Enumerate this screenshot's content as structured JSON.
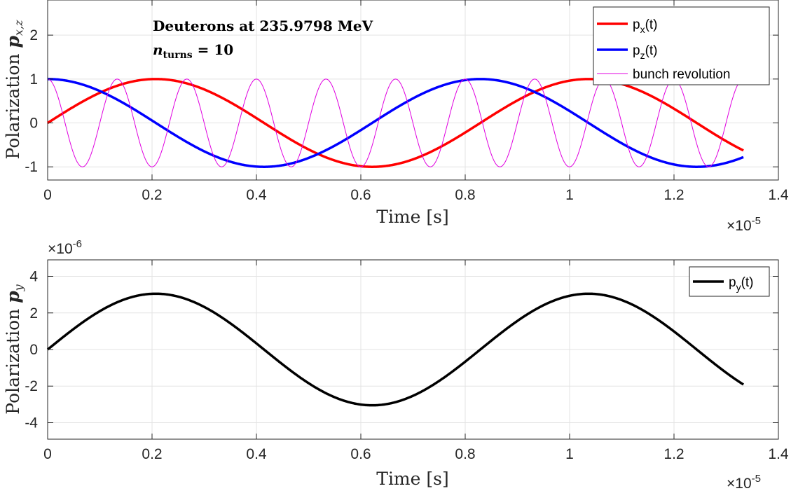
{
  "chart_data": [
    {
      "type": "line",
      "id": "top",
      "xlabel": "Time [s]",
      "ylabel": "Polarization",
      "ylabel_sub": "x,z",
      "xlim": [
        0,
        1.4
      ],
      "ylim": [
        -1.3,
        2.8
      ],
      "x_exponent_base": "×10",
      "x_exponent_power": "-5",
      "x_ticks": [
        "0",
        "0.2",
        "0.4",
        "0.6",
        "0.8",
        "1",
        "1.2",
        "1.4"
      ],
      "y_ticks": [
        "-1",
        "0",
        "1",
        "2"
      ],
      "y_tick_values": [
        -1,
        0,
        1,
        2
      ],
      "grid": true,
      "annotations": {
        "line1": "Deuterons at 235.9798 MeV",
        "line2_var": "n",
        "line2_sub": "turns",
        "line2_rest": " = 10"
      },
      "legend_position": "top-right",
      "series": [
        {
          "key": "px",
          "name_base": "p",
          "name_sub": "x",
          "name_suffix": "(t)",
          "color": "#ff0000",
          "amplitude": 1,
          "phase": "sin",
          "period": 0.829,
          "x_end": 1.333
        },
        {
          "key": "pz",
          "name_base": "p",
          "name_sub": "z",
          "name_suffix": "(t)",
          "color": "#0000ff",
          "amplitude": 1,
          "phase": "cos",
          "period": 0.829,
          "x_end": 1.333
        },
        {
          "key": "bunch",
          "name": "bunch revolution",
          "color": "#e000e0",
          "amplitude": 1,
          "phase": "cos",
          "period": 0.1333,
          "x_end": 1.333
        }
      ]
    },
    {
      "type": "line",
      "id": "bottom",
      "xlabel": "Time [s]",
      "ylabel": "Polarization",
      "ylabel_sub": "y",
      "xlim": [
        0,
        1.4
      ],
      "ylim": [
        -4.9,
        4.9
      ],
      "x_exponent_base": "×10",
      "x_exponent_power": "-5",
      "y_exponent_base": "×10",
      "y_exponent_power": "-6",
      "x_ticks": [
        "0",
        "0.2",
        "0.4",
        "0.6",
        "0.8",
        "1",
        "1.2",
        "1.4"
      ],
      "y_ticks": [
        "-4",
        "-2",
        "0",
        "2",
        "4"
      ],
      "y_tick_values": [
        -4,
        -2,
        0,
        2,
        4
      ],
      "grid": true,
      "legend_position": "top-right",
      "series": [
        {
          "key": "py",
          "name_base": "p",
          "name_sub": "y",
          "name_suffix": "(t)",
          "color": "#000000",
          "amplitude": 3.05,
          "phase": "sin",
          "period": 0.829,
          "x_end": 1.333
        }
      ]
    }
  ]
}
